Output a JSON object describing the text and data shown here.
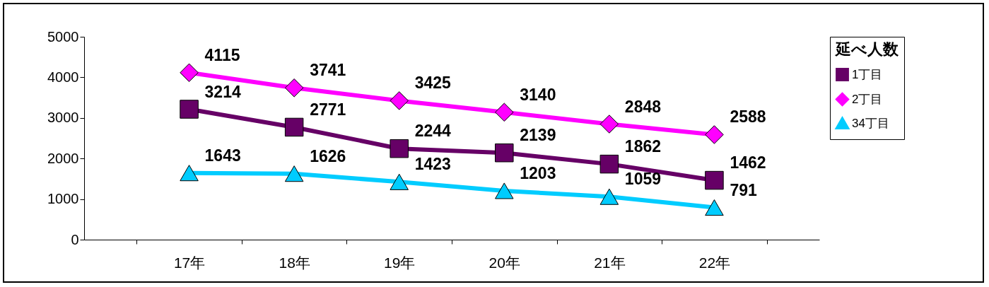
{
  "chart_data": {
    "type": "line",
    "legend_title": "延べ人数",
    "categories": [
      "17年",
      "18年",
      "19年",
      "20年",
      "21年",
      "22年"
    ],
    "series": [
      {
        "name": "1丁目",
        "color": "#660066",
        "marker": "square",
        "values": [
          3214,
          2771,
          2244,
          2139,
          1862,
          1462
        ]
      },
      {
        "name": "2丁目",
        "color": "#ff00ff",
        "marker": "diamond",
        "values": [
          4115,
          3741,
          3425,
          3140,
          2848,
          2588
        ]
      },
      {
        "name": "34丁目",
        "color": "#00ccff",
        "marker": "triangle",
        "values": [
          1643,
          1626,
          1423,
          1203,
          1059,
          791
        ]
      }
    ],
    "ylim": [
      0,
      5000
    ],
    "yticks": [
      0,
      1000,
      2000,
      3000,
      4000,
      5000
    ],
    "grid": false,
    "legend": "right",
    "data_labels": true
  }
}
